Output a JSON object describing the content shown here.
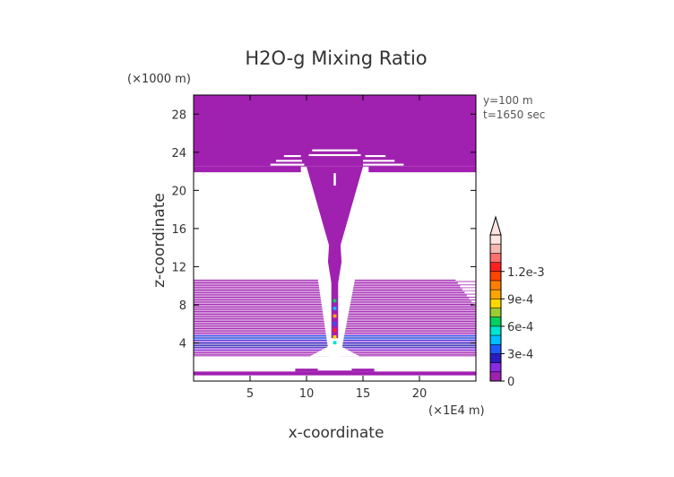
{
  "chart_data": {
    "type": "heatmap",
    "title": "H2O-g Mixing Ratio",
    "xlabel": "x-coordinate",
    "ylabel": "z-coordinate",
    "x_unit": "(×1E4 m)",
    "y_unit": "(×1000 m)",
    "xlim": [
      0,
      25
    ],
    "ylim": [
      0,
      30
    ],
    "x_ticks": [
      5,
      10,
      15,
      20
    ],
    "y_ticks": [
      4,
      8,
      12,
      16,
      20,
      24,
      28
    ],
    "annotations": [
      "y=100 m",
      "t=1650 sec"
    ],
    "colorbar": {
      "tick_labels": [
        "0",
        "3e-4",
        "6e-4",
        "9e-4",
        "1.2e-3"
      ],
      "tick_values": [
        0,
        0.0003,
        0.0006,
        0.0009,
        0.0012
      ],
      "colors": [
        "#a020b0",
        "#8a2be2",
        "#2a1cc0",
        "#1e5bff",
        "#00bfff",
        "#00e5d0",
        "#00d060",
        "#9acd32",
        "#ffd700",
        "#ffa500",
        "#ff7f00",
        "#ff4500",
        "#ff2020",
        "#ff7070",
        "#f4b8b0",
        "#ffe4e1"
      ],
      "extend": "max"
    },
    "grid": false
  }
}
